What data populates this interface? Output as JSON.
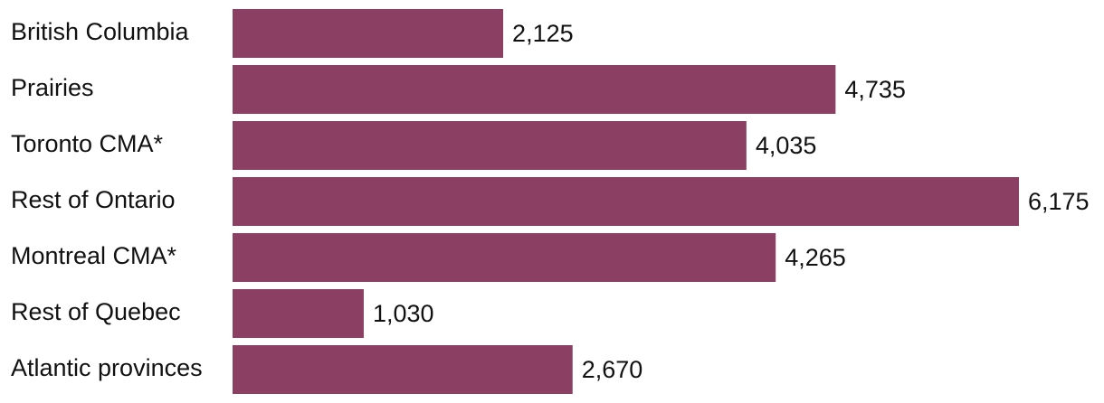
{
  "chart_data": {
    "type": "bar",
    "orientation": "horizontal",
    "categories": [
      "British Columbia",
      "Prairies",
      "Toronto CMA*",
      "Rest of Ontario",
      "Montreal CMA*",
      "Rest of Quebec",
      "Atlantic provinces"
    ],
    "values": [
      2125,
      4735,
      4035,
      6175,
      4265,
      1030,
      2670
    ],
    "value_labels": [
      "2,125",
      "4,735",
      "4,035",
      "6,175",
      "4,265",
      "1,030",
      "2,670"
    ],
    "color": "#8b3f62"
  }
}
